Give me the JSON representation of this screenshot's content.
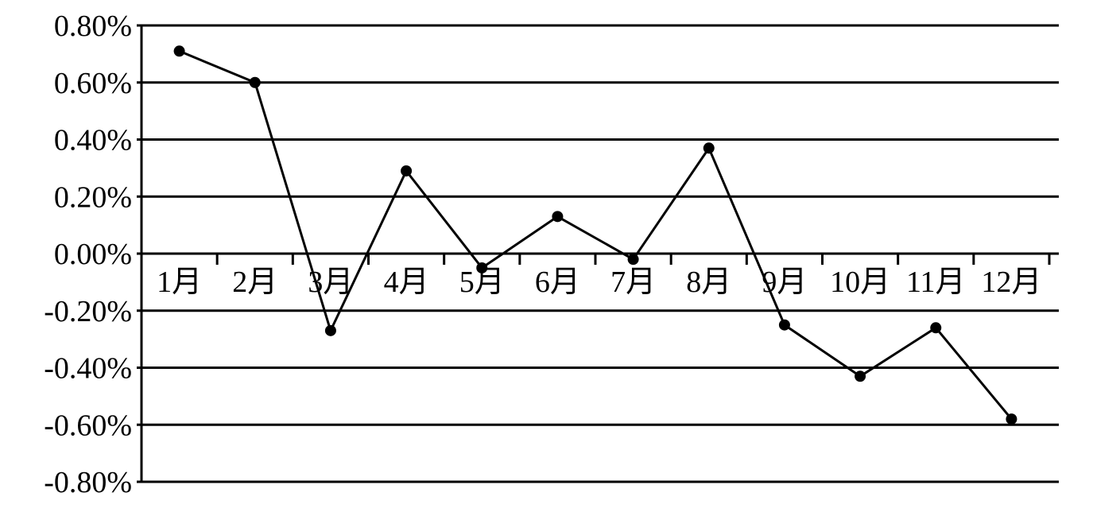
{
  "chart_data": {
    "type": "line",
    "title": "",
    "xlabel": "",
    "ylabel": "",
    "categories": [
      "1月",
      "2月",
      "3月",
      "4月",
      "5月",
      "6月",
      "7月",
      "8月",
      "9月",
      "10月",
      "11月",
      "12月"
    ],
    "series": [
      {
        "values": [
          0.71,
          0.6,
          -0.27,
          0.29,
          -0.05,
          0.13,
          -0.02,
          0.37,
          -0.25,
          -0.43,
          -0.26,
          -0.58
        ]
      }
    ],
    "y_unit": "%",
    "ylim": [
      -0.8,
      0.8
    ],
    "yticks": [
      "0.80%",
      "0.60%",
      "0.40%",
      "0.20%",
      "0.00%",
      "-0.20%",
      "-0.40%",
      "-0.60%",
      "-0.80%"
    ],
    "ytick_values": [
      0.8,
      0.6,
      0.4,
      0.2,
      0.0,
      -0.2,
      -0.4,
      -0.6,
      -0.8
    ],
    "grid": "horizontal",
    "legend": "none",
    "colors": {
      "line": "#000000",
      "marker": "#000000",
      "grid": "#000000",
      "axis": "#000000"
    }
  }
}
